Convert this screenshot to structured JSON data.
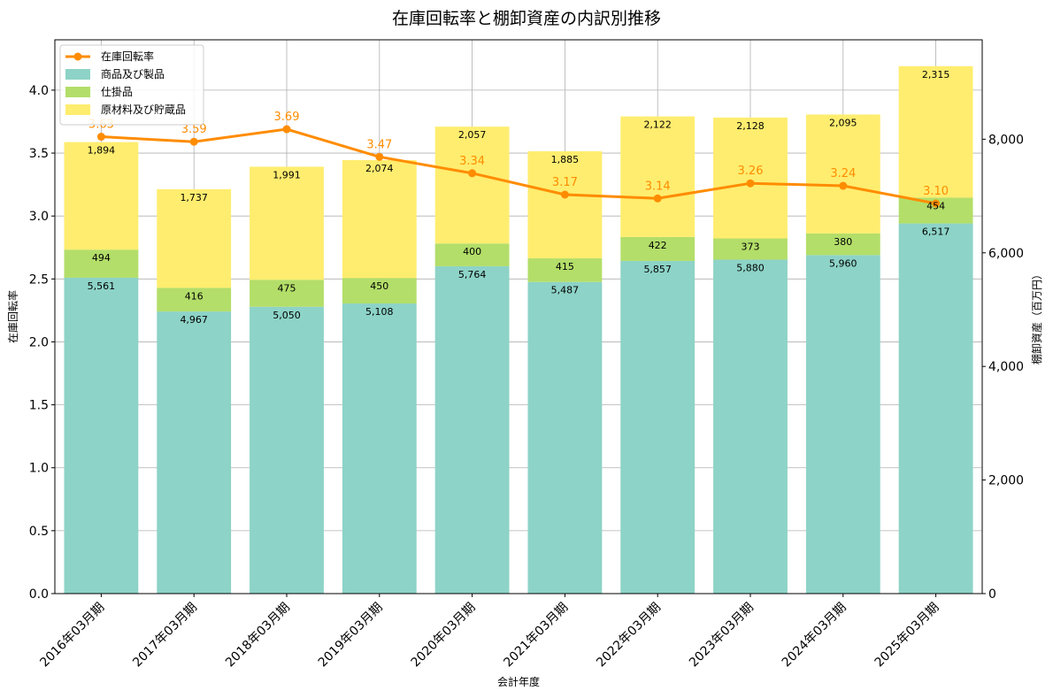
{
  "chart_data": {
    "type": "bar",
    "title": "在庫回転率と棚卸資産の内訳別推移",
    "xlabel": "会計年度",
    "ylabel_left": "在庫回転率",
    "ylabel_right": "棚卸資産（百万円）",
    "categories": [
      "2016年03月期",
      "2017年03月期",
      "2018年03月期",
      "2019年03月期",
      "2020年03月期",
      "2021年03月期",
      "2022年03月期",
      "2023年03月期",
      "2024年03月期",
      "2025年03月期"
    ],
    "series": [
      {
        "name": "商品及び製品",
        "kind": "bar",
        "axis": "right",
        "color": "#8dd3c7",
        "values": [
          5561,
          4967,
          5050,
          5108,
          5764,
          5487,
          5857,
          5880,
          5960,
          6517
        ],
        "labels": [
          "5,561",
          "4,967",
          "5,050",
          "5,108",
          "5,764",
          "5,487",
          "5,857",
          "5,880",
          "5,960",
          "6,517"
        ]
      },
      {
        "name": "仕掛品",
        "kind": "bar",
        "axis": "right",
        "color": "#b3de69",
        "values": [
          494,
          416,
          475,
          450,
          400,
          415,
          422,
          373,
          380,
          454
        ],
        "labels": [
          "494",
          "416",
          "475",
          "450",
          "400",
          "415",
          "422",
          "373",
          "380",
          "454"
        ]
      },
      {
        "name": "原材料及び貯蔵品",
        "kind": "bar",
        "axis": "right",
        "color": "#ffed6f",
        "values": [
          1894,
          1737,
          1991,
          2074,
          2057,
          1885,
          2122,
          2128,
          2095,
          2315
        ],
        "labels": [
          "1,894",
          "1,737",
          "1,991",
          "2,074",
          "2,057",
          "1,885",
          "2,122",
          "2,128",
          "2,095",
          "2,315"
        ]
      },
      {
        "name": "在庫回転率",
        "kind": "line",
        "axis": "left",
        "color": "#ff8c00",
        "values": [
          3.63,
          3.59,
          3.69,
          3.47,
          3.34,
          3.17,
          3.14,
          3.26,
          3.24,
          3.1
        ],
        "labels": [
          "3.63",
          "3.59",
          "3.69",
          "3.47",
          "3.34",
          "3.17",
          "3.14",
          "3.26",
          "3.24",
          "3.10"
        ]
      }
    ],
    "ylim_left": [
      0,
      4.4
    ],
    "ylim_right": [
      0,
      9750
    ],
    "yticks_left": [
      "0.0",
      "0.5",
      "1.0",
      "1.5",
      "2.0",
      "2.5",
      "3.0",
      "3.5",
      "4.0"
    ],
    "yticks_right": [
      "0",
      "2,000",
      "4,000",
      "6,000",
      "8,000"
    ],
    "grid": true,
    "legend_position": "upper left"
  }
}
